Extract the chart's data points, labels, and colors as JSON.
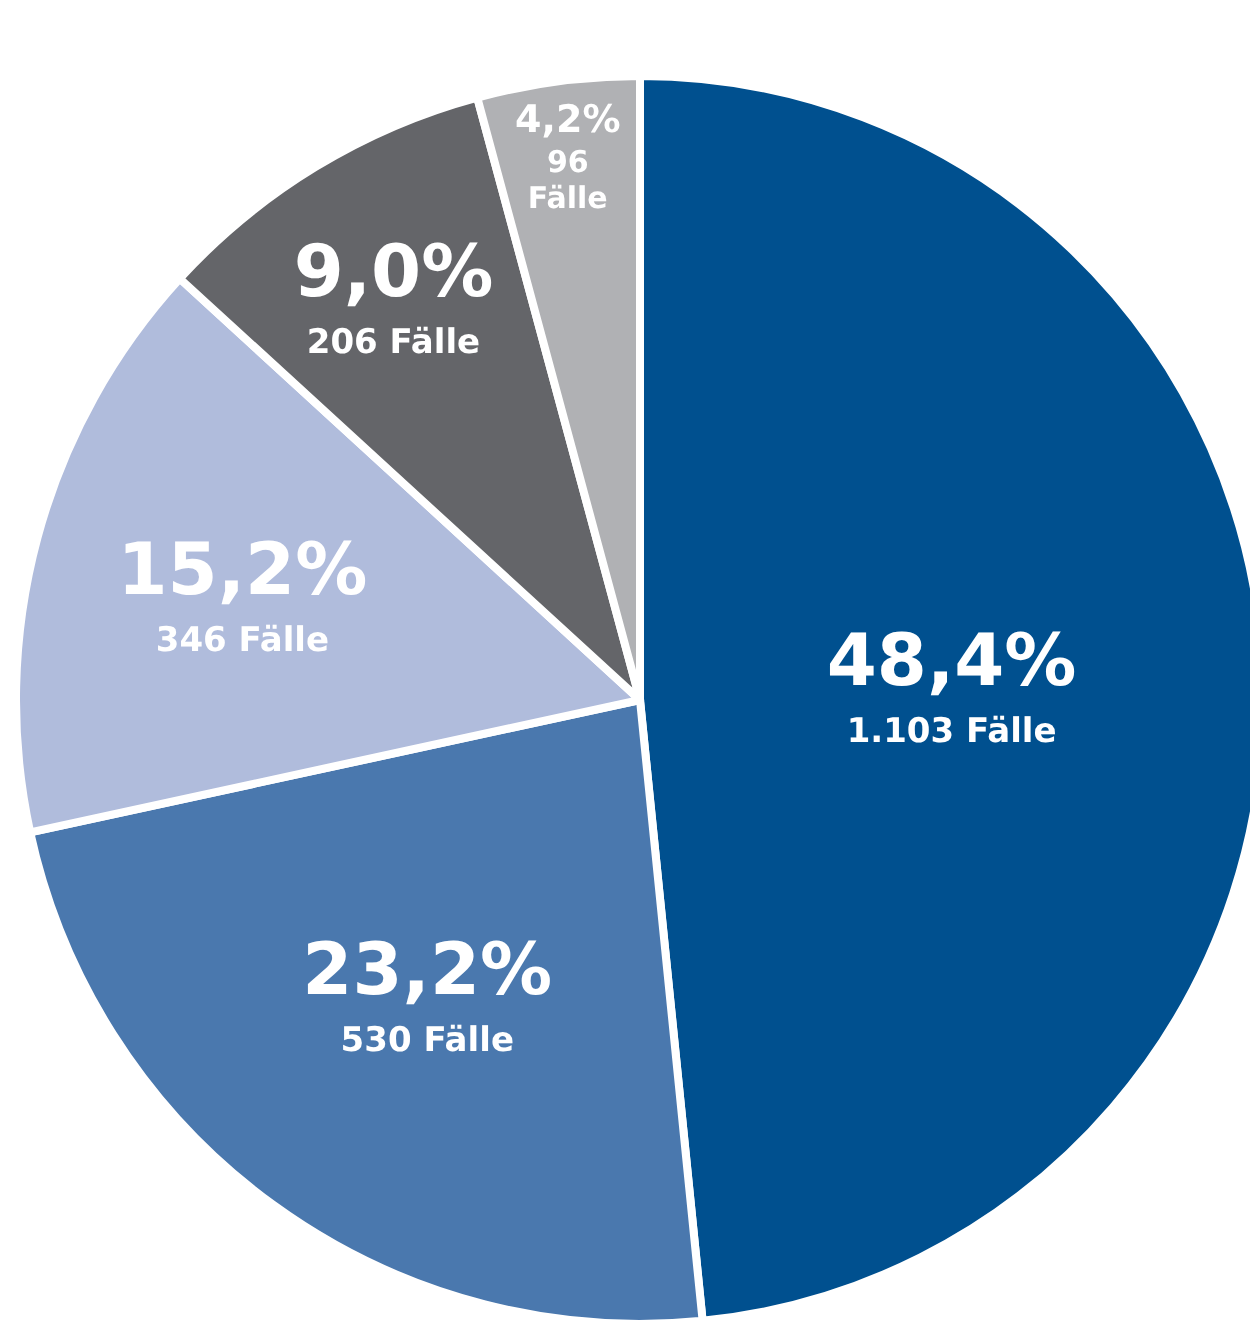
{
  "chart_data": {
    "type": "pie",
    "categories": [
      null,
      null,
      null,
      null,
      null
    ],
    "values": [
      48.4,
      23.2,
      15.2,
      9.0,
      4.2
    ],
    "colors": [
      "#00508f",
      "#4a78ae",
      "#b0bcdc",
      "#646569",
      "#b0b1b4"
    ],
    "value_labels": [
      "48,4%\n1.103 Fälle",
      "23,2%\n530 Fälle",
      "15,2%\n346 Fälle",
      "9,0%\n206 Fälle",
      "4,2%\n96\nFälle"
    ]
  }
}
